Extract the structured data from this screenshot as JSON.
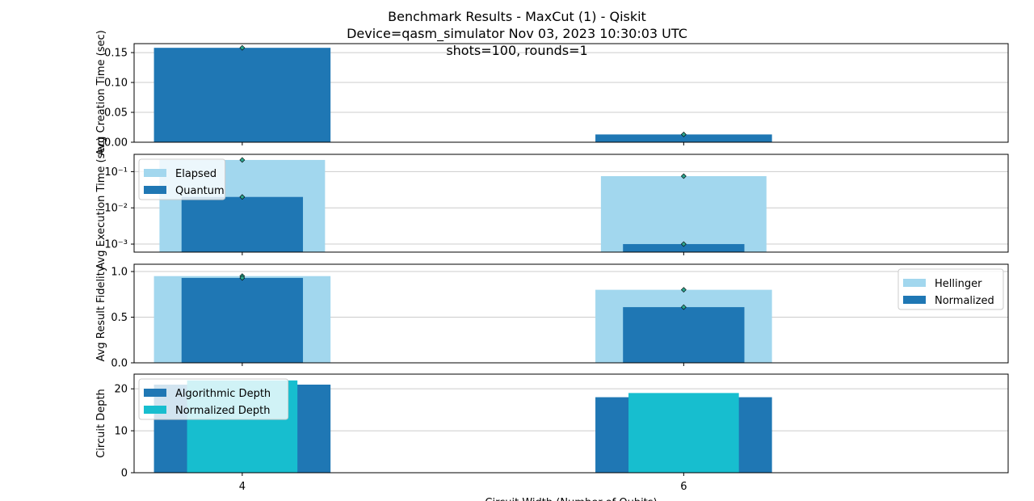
{
  "title": {
    "line1": "Benchmark Results - MaxCut (1) - Qiskit",
    "line2": "Device=qasm_simulator  Nov 03, 2023 10:30:03 UTC",
    "line3": "shots=100, rounds=1"
  },
  "colors": {
    "dark_blue": "#1f77b4",
    "light_blue": "#a2d7ee",
    "cyan": "#17becf",
    "marker": "#2ca58d",
    "grid": "#cccccc"
  },
  "chart_data": [
    {
      "type": "bar",
      "x": [
        4,
        6
      ],
      "ylabel": "Avg Creation Time (sec)",
      "ylim": [
        0,
        0.165
      ],
      "yticks": [
        0.0,
        0.05,
        0.1,
        0.15
      ],
      "ytick_labels": [
        "0.00",
        "0.05",
        "0.10",
        "0.15"
      ],
      "grid": true,
      "series": [
        {
          "values": [
            0.158,
            0.013
          ],
          "width": 0.8
        }
      ]
    },
    {
      "type": "bar",
      "x": [
        4,
        6
      ],
      "ylabel": "Avg Execution Time (sec)",
      "yscale": "log",
      "ylim": [
        0.0006,
        0.3
      ],
      "yticks": [
        0.001,
        0.01,
        0.1
      ],
      "ytick_labels": [
        "10⁻³",
        "10⁻²",
        "10⁻¹"
      ],
      "grid": true,
      "legend": "top-left",
      "series": [
        {
          "name": "Elapsed",
          "values": [
            0.21,
            0.075
          ],
          "width": 0.75
        },
        {
          "name": "Quantum",
          "values": [
            0.02,
            0.001
          ],
          "width": 0.55
        }
      ]
    },
    {
      "type": "bar",
      "x": [
        4,
        6
      ],
      "ylabel": "Avg Result Fidelity",
      "ylim": [
        0,
        1.08
      ],
      "yticks": [
        0.0,
        0.5,
        1.0
      ],
      "ytick_labels": [
        "0.0",
        "0.5",
        "1.0"
      ],
      "grid": true,
      "legend": "top-right",
      "series": [
        {
          "name": "Hellinger",
          "values": [
            0.95,
            0.8
          ],
          "width": 0.8
        },
        {
          "name": "Normalized",
          "values": [
            0.93,
            0.61
          ],
          "width": 0.55
        }
      ]
    },
    {
      "type": "bar",
      "x": [
        4,
        6
      ],
      "ylabel": "Circuit Depth",
      "xlabel": "Circuit Width (Number of Qubits)",
      "ylim": [
        0,
        23.5
      ],
      "yticks": [
        0,
        10,
        20
      ],
      "ytick_labels": [
        "0",
        "10",
        "20"
      ],
      "xtick_labels": [
        "4",
        "6"
      ],
      "grid": true,
      "legend": "top-left",
      "series": [
        {
          "name": "Algorithmic Depth",
          "values": [
            21,
            18
          ],
          "width": 0.8
        },
        {
          "name": "Normalized Depth",
          "values": [
            22,
            19
          ],
          "width": 0.5
        }
      ]
    }
  ]
}
